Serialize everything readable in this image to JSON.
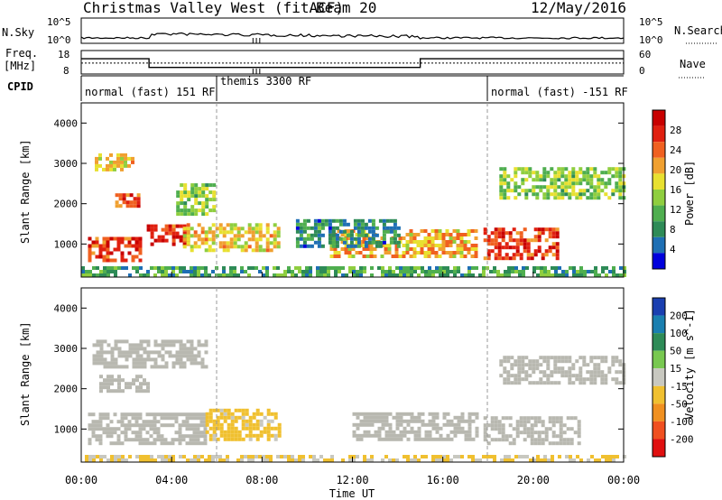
{
  "header": {
    "title": "Christmas Valley West (fitACF)",
    "beam": "Beam 20",
    "date": "12/May/2016"
  },
  "top_panels": {
    "nsky_label": "N.Sky",
    "nsky_ticks": [
      "10^5",
      "10^0"
    ],
    "nsearch_label": "N.Search",
    "nsearch_ticks": [
      "10^5",
      "10^0"
    ],
    "freq_label_1": "Freq.",
    "freq_label_2": "[MHz]",
    "freq_ticks": [
      "18",
      "8"
    ],
    "nave_label": "Nave",
    "nave_ticks": [
      "60",
      "0"
    ],
    "cpid_label": "CPID",
    "cpid_segments": [
      {
        "label": "normal (fast) 151 RF",
        "start_hour": 0,
        "end_hour": 6
      },
      {
        "label": "themis 3300 RF",
        "start_hour": 6,
        "end_hour": 18
      },
      {
        "label": "normal (fast) -151 RF",
        "start_hour": 18,
        "end_hour": 24
      }
    ],
    "freq_step": {
      "high_mhz": 14.5,
      "low_mhz": 10.8,
      "low_start_hour": 3.0,
      "low_end_hour": 15.0
    },
    "nave_value": 28
  },
  "colors": {
    "power_scale": [
      "#0000dc",
      "#1e6fb4",
      "#2e8b57",
      "#4fae4f",
      "#8fce3f",
      "#e8e030",
      "#f0a030",
      "#f06020",
      "#e02010",
      "#c80000"
    ],
    "velocity_scale": [
      "#1a3fb0",
      "#1a7fb0",
      "#2e8b57",
      "#78c850",
      "#c8c8c0",
      "#f0c030",
      "#f09020",
      "#f05020",
      "#e01010"
    ],
    "ground_scatter": "#b8b8b0"
  },
  "chart_data": [
    {
      "type": "heatmap",
      "title": "",
      "xlabel": "",
      "ylabel": "Slant Range [km]",
      "x_range_hours": [
        0,
        24
      ],
      "ylim": [
        180,
        4500
      ],
      "x_ticks": [],
      "y_ticks": [
        "1000",
        "2000",
        "3000",
        "4000"
      ],
      "colorbar": {
        "label": "Power [dB]",
        "ticks": [
          "28",
          "24",
          "20",
          "16",
          "12",
          "8",
          "4"
        ],
        "range": [
          0,
          32
        ]
      },
      "regions": [
        {
          "name": "echo-near-0130",
          "t0": 0.3,
          "t1": 2.6,
          "r0": 550,
          "r1": 1150,
          "value": 26
        },
        {
          "name": "echo-near-0330",
          "t0": 2.9,
          "t1": 4.7,
          "r0": 950,
          "r1": 1450,
          "value": 27
        },
        {
          "name": "echo-0600-0900",
          "t0": 4.5,
          "t1": 8.8,
          "r0": 800,
          "r1": 1500,
          "value": 18
        },
        {
          "name": "echo-far-0100",
          "t0": 0.6,
          "t1": 2.3,
          "r0": 2800,
          "r1": 3200,
          "value": 18
        },
        {
          "name": "echo-mid-0200",
          "t0": 1.5,
          "t1": 2.5,
          "r0": 1900,
          "r1": 2200,
          "value": 25
        },
        {
          "name": "echo-mid-0500",
          "t0": 4.2,
          "t1": 5.8,
          "r0": 1700,
          "r1": 2500,
          "value": 14
        },
        {
          "name": "echo-1300-1700",
          "t0": 11.0,
          "t1": 17.5,
          "r0": 650,
          "r1": 1300,
          "value": 20
        },
        {
          "name": "echo-1800-2100",
          "t0": 17.8,
          "t1": 21.0,
          "r0": 600,
          "r1": 1400,
          "value": 26
        },
        {
          "name": "echo-far-1900-2400",
          "t0": 18.5,
          "t1": 24.0,
          "r0": 2100,
          "r1": 2900,
          "value": 14
        },
        {
          "name": "sparse-1000-1400",
          "t0": 9.5,
          "t1": 14.0,
          "r0": 900,
          "r1": 1600,
          "value": 8
        },
        {
          "name": "near-range-noise",
          "t0": 0.0,
          "t1": 24.0,
          "r0": 180,
          "r1": 380,
          "value": 10
        }
      ]
    },
    {
      "type": "heatmap",
      "title": "",
      "xlabel": "Time UT",
      "ylabel": "Slant Range [km]",
      "x_range_hours": [
        0,
        24
      ],
      "ylim": [
        180,
        4500
      ],
      "x_ticks": [
        "00:00",
        "04:00",
        "08:00",
        "12:00",
        "16:00",
        "20:00",
        "00:00"
      ],
      "y_ticks": [
        "1000",
        "2000",
        "3000",
        "4000"
      ],
      "colorbar": {
        "label": "Velocity [m s^-1]",
        "ticks": [
          "200",
          "100",
          "50",
          "15",
          "-15",
          "-50",
          "-100",
          "-200"
        ],
        "range": [
          -250,
          250
        ]
      },
      "regions": [
        {
          "name": "gs-near-0100",
          "t0": 0.3,
          "t1": 5.5,
          "r0": 600,
          "r1": 1400,
          "value": 0
        },
        {
          "name": "flow-0600-0900",
          "t0": 5.5,
          "t1": 8.8,
          "r0": 700,
          "r1": 1500,
          "value": -40
        },
        {
          "name": "gs-far-0100",
          "t0": 0.5,
          "t1": 5.5,
          "r0": 2500,
          "r1": 3200,
          "value": 0
        },
        {
          "name": "mid-0200",
          "t0": 0.8,
          "t1": 3.0,
          "r0": 1900,
          "r1": 2300,
          "value": 0
        },
        {
          "name": "gs-1300-1700",
          "t0": 12.0,
          "t1": 17.5,
          "r0": 700,
          "r1": 1400,
          "value": 0
        },
        {
          "name": "gs-1800-2200",
          "t0": 17.8,
          "t1": 22.0,
          "r0": 600,
          "r1": 1300,
          "value": 0
        },
        {
          "name": "gs-far-1900-2400",
          "t0": 18.5,
          "t1": 24.0,
          "r0": 2100,
          "r1": 2800,
          "value": 0
        },
        {
          "name": "near-range-flow",
          "t0": 0.0,
          "t1": 24.0,
          "r0": 180,
          "r1": 350,
          "value": -30
        }
      ]
    }
  ]
}
